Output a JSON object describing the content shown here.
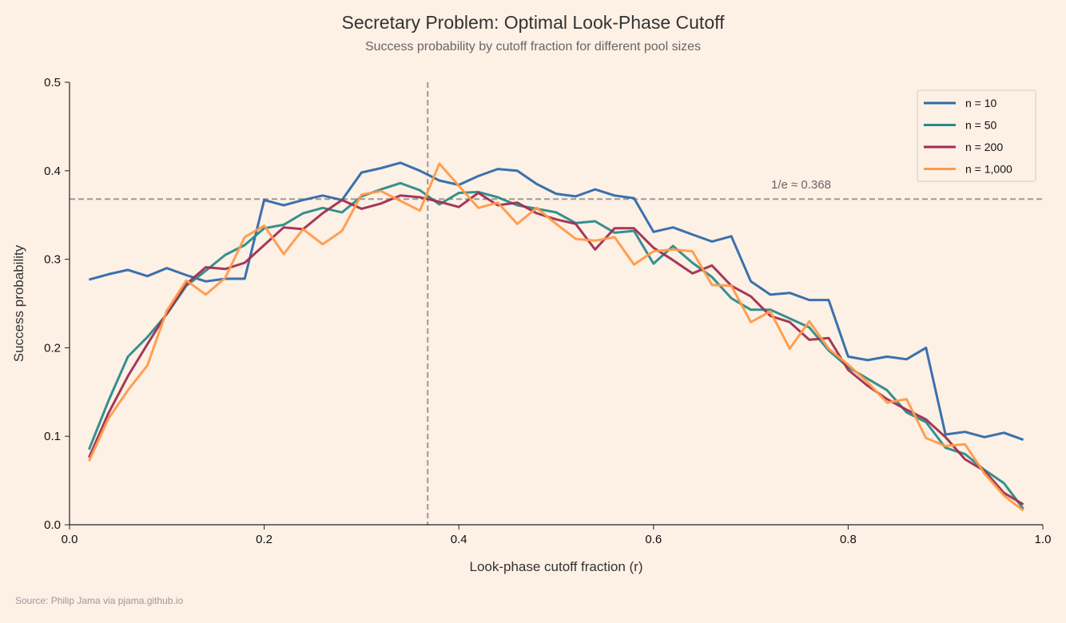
{
  "chart_data": {
    "type": "line",
    "title": "Secretary Problem: Optimal Look-Phase Cutoff",
    "subtitle": "Success probability by cutoff fraction for different pool sizes",
    "xlabel": "Look-phase cutoff fraction (r)",
    "ylabel": "Success probability",
    "xlim": [
      0,
      1.0
    ],
    "ylim": [
      0,
      0.5
    ],
    "xticks": [
      "0.0",
      "0.2",
      "0.4",
      "0.6",
      "0.8",
      "1.0"
    ],
    "yticks": [
      "0.0",
      "0.1",
      "0.2",
      "0.3",
      "0.4",
      "0.5"
    ],
    "grid": false,
    "legend_position": "top-right",
    "reference_lines": {
      "vertical_x": 0.368,
      "horizontal_y": 0.368,
      "annotation": "1/e ≈ 0.368"
    },
    "x": [
      0.02,
      0.04,
      0.06,
      0.08,
      0.1,
      0.12,
      0.14,
      0.16,
      0.18,
      0.2,
      0.22,
      0.24,
      0.26,
      0.28,
      0.3,
      0.32,
      0.34,
      0.36,
      0.38,
      0.4,
      0.42,
      0.44,
      0.46,
      0.48,
      0.5,
      0.52,
      0.54,
      0.56,
      0.58,
      0.6,
      0.62,
      0.64,
      0.66,
      0.68,
      0.7,
      0.72,
      0.74,
      0.76,
      0.78,
      0.8,
      0.82,
      0.84,
      0.86,
      0.88,
      0.9,
      0.92,
      0.94,
      0.96,
      0.98
    ],
    "series": [
      {
        "name": "n = 10",
        "color": "#2f69a8",
        "values": [
          0.277,
          0.283,
          0.288,
          0.281,
          0.29,
          0.282,
          0.275,
          0.278,
          0.278,
          0.367,
          0.361,
          0.367,
          0.372,
          0.367,
          0.398,
          0.403,
          0.409,
          0.4,
          0.389,
          0.384,
          0.394,
          0.402,
          0.4,
          0.385,
          0.374,
          0.371,
          0.379,
          0.372,
          0.369,
          0.331,
          0.336,
          0.328,
          0.32,
          0.326,
          0.275,
          0.26,
          0.262,
          0.254,
          0.254,
          0.19,
          0.186,
          0.19,
          0.187,
          0.2,
          0.102,
          0.105,
          0.099,
          0.104,
          0.096
        ]
      },
      {
        "name": "n = 50",
        "color": "#2b8a89",
        "values": [
          0.085,
          0.14,
          0.19,
          0.212,
          0.238,
          0.27,
          0.287,
          0.305,
          0.316,
          0.335,
          0.339,
          0.352,
          0.358,
          0.353,
          0.371,
          0.379,
          0.386,
          0.378,
          0.362,
          0.375,
          0.376,
          0.37,
          0.361,
          0.357,
          0.353,
          0.341,
          0.343,
          0.33,
          0.332,
          0.295,
          0.315,
          0.296,
          0.28,
          0.256,
          0.243,
          0.243,
          0.233,
          0.223,
          0.197,
          0.178,
          0.165,
          0.152,
          0.127,
          0.116,
          0.087,
          0.08,
          0.062,
          0.047,
          0.018
        ]
      },
      {
        "name": "n = 200",
        "color": "#a02d50",
        "values": [
          0.076,
          0.126,
          0.168,
          0.204,
          0.239,
          0.272,
          0.291,
          0.289,
          0.296,
          0.316,
          0.336,
          0.334,
          0.352,
          0.367,
          0.357,
          0.363,
          0.372,
          0.37,
          0.365,
          0.359,
          0.375,
          0.361,
          0.364,
          0.352,
          0.345,
          0.34,
          0.311,
          0.335,
          0.335,
          0.313,
          0.299,
          0.284,
          0.293,
          0.27,
          0.258,
          0.236,
          0.229,
          0.209,
          0.211,
          0.175,
          0.157,
          0.142,
          0.13,
          0.119,
          0.099,
          0.074,
          0.061,
          0.036,
          0.023
        ]
      },
      {
        "name": "n = 1,000",
        "color": "#ff9a48",
        "values": [
          0.072,
          0.12,
          0.152,
          0.18,
          0.242,
          0.276,
          0.26,
          0.279,
          0.325,
          0.338,
          0.306,
          0.334,
          0.317,
          0.332,
          0.373,
          0.377,
          0.366,
          0.355,
          0.408,
          0.383,
          0.358,
          0.364,
          0.34,
          0.358,
          0.34,
          0.323,
          0.321,
          0.325,
          0.294,
          0.309,
          0.311,
          0.309,
          0.271,
          0.27,
          0.229,
          0.241,
          0.199,
          0.23,
          0.199,
          0.181,
          0.161,
          0.138,
          0.142,
          0.098,
          0.089,
          0.091,
          0.058,
          0.033,
          0.016
        ]
      }
    ]
  },
  "source": "Source: Philip Jama via pjama.github.io",
  "colors": {
    "background": "#fdf0e5",
    "reference": "#9a9a9a"
  }
}
